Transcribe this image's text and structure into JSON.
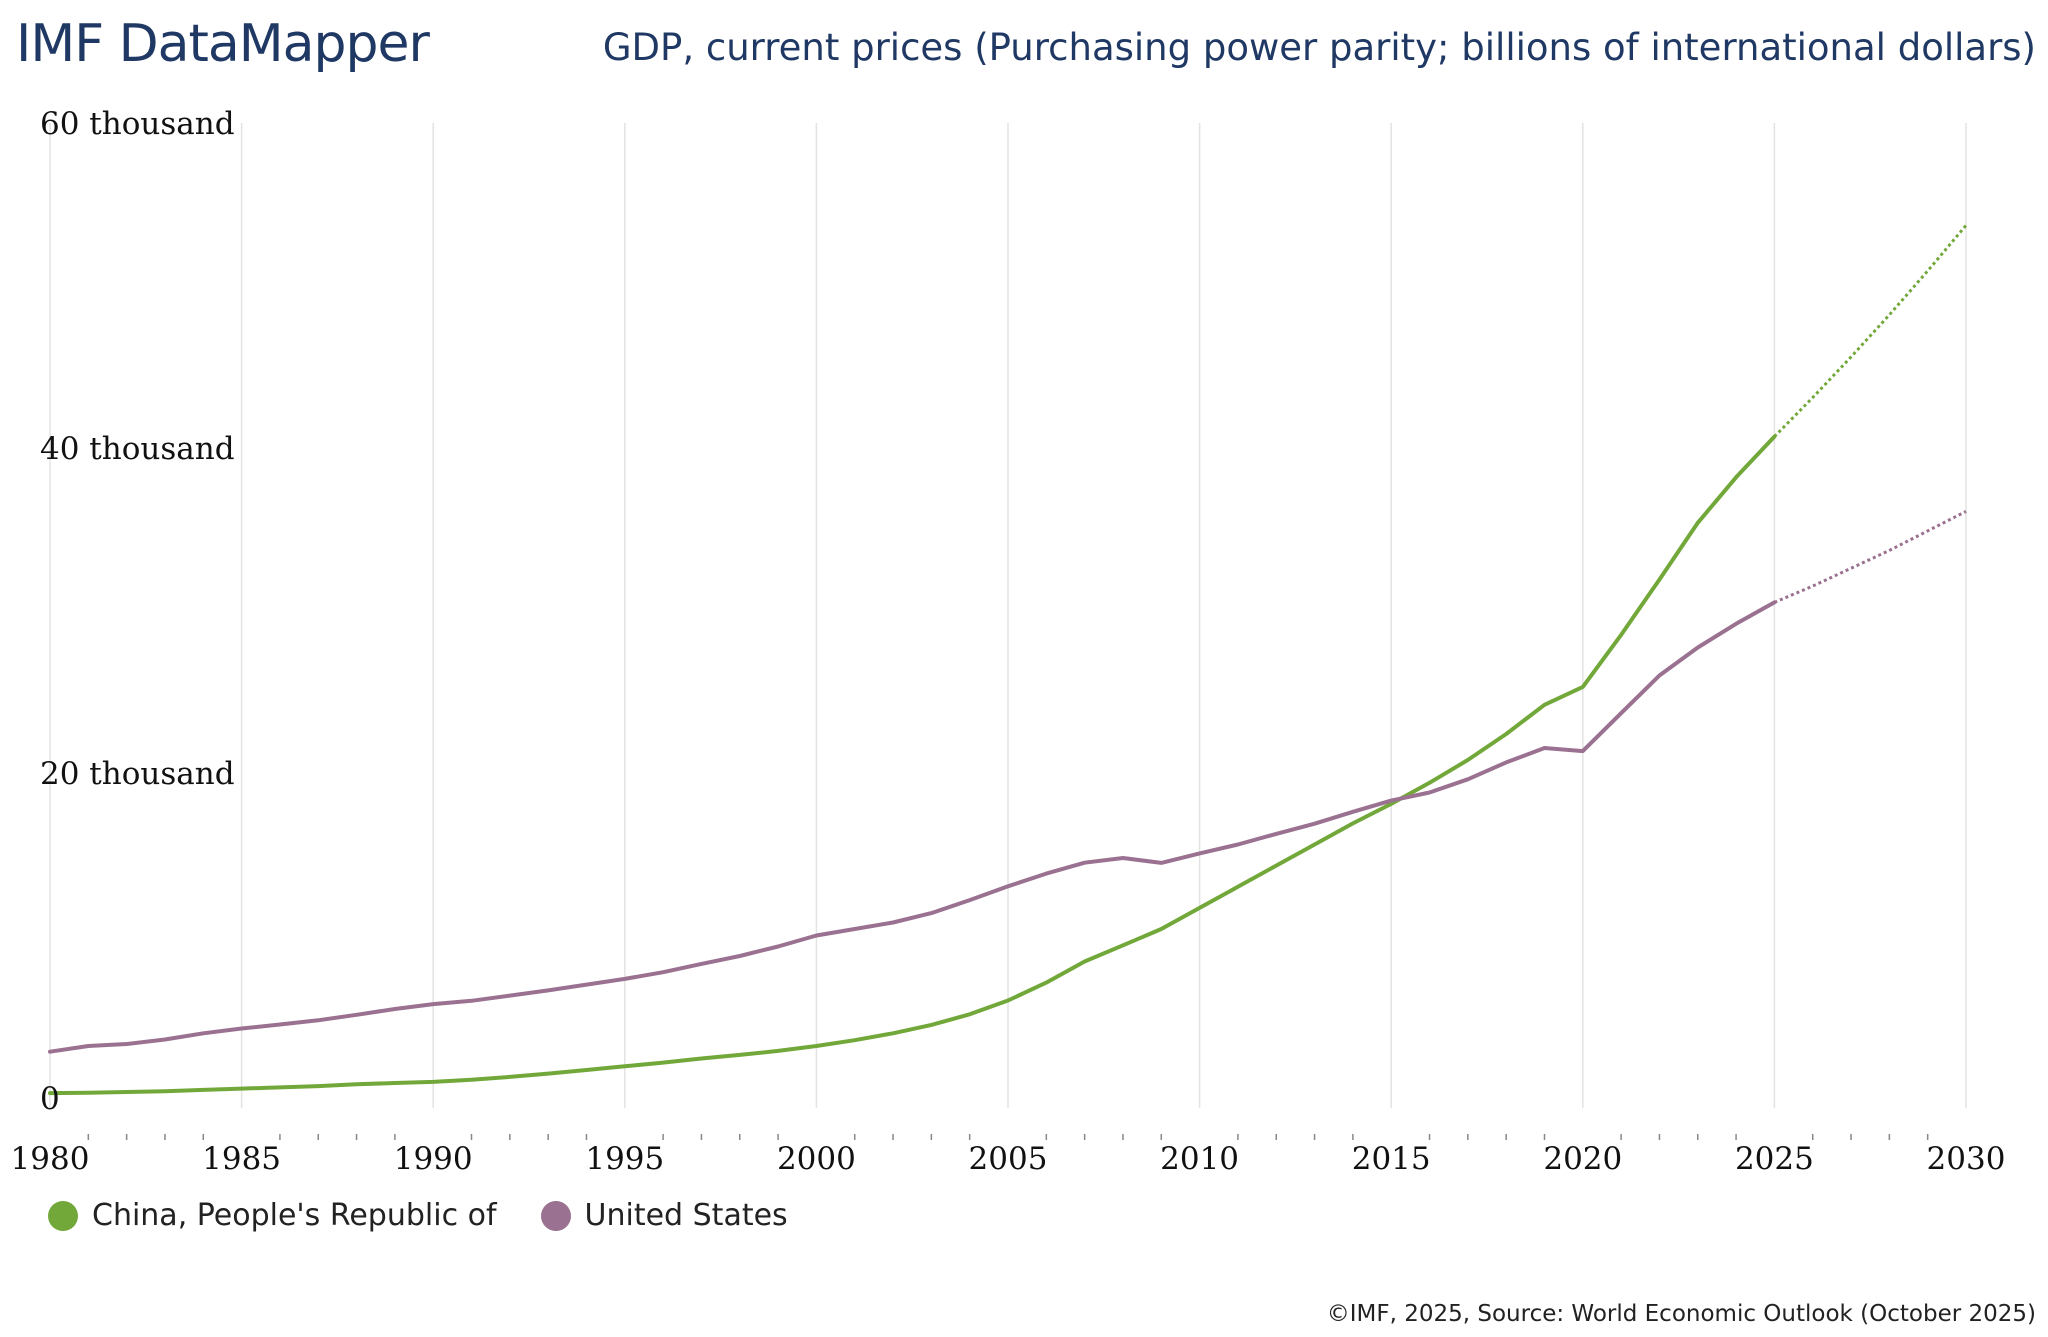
{
  "header": {
    "brand": "IMF DataMapper"
  },
  "footer": {
    "source": "©IMF, 2025, Source: World Economic Outlook (October 2025)"
  },
  "chart_data": {
    "type": "line",
    "title": "GDP, current prices (Purchasing power parity; billions of international dollars)",
    "xlabel": "",
    "ylabel": "",
    "xlim": [
      1980,
      2030
    ],
    "ylim": [
      0,
      60000
    ],
    "projection_start": 2025,
    "x_ticks": [
      1980,
      1985,
      1990,
      1995,
      2000,
      2005,
      2010,
      2015,
      2020,
      2025,
      2030
    ],
    "x_tick_labels": [
      "1980",
      "1985",
      "1990",
      "1995",
      "2000",
      "2005",
      "2010",
      "2015",
      "2020",
      "2025",
      "2030"
    ],
    "y_ticks": [
      0,
      20000,
      40000,
      60000
    ],
    "y_tick_labels": [
      "0",
      "20 thousand",
      "40 thousand",
      "60 thousand"
    ],
    "grid": true,
    "legend_position": "bottom-left",
    "x": [
      1980,
      1981,
      1982,
      1983,
      1984,
      1985,
      1986,
      1987,
      1988,
      1989,
      1990,
      1991,
      1992,
      1993,
      1994,
      1995,
      1996,
      1997,
      1998,
      1999,
      2000,
      2001,
      2002,
      2003,
      2004,
      2005,
      2006,
      2007,
      2008,
      2009,
      2010,
      2011,
      2012,
      2013,
      2014,
      2015,
      2016,
      2017,
      2018,
      2019,
      2020,
      2021,
      2022,
      2023,
      2024,
      2025,
      2026,
      2027,
      2028,
      2029,
      2030
    ],
    "series": [
      {
        "name": "China, People's Republic of",
        "color": "#72a83a",
        "values": [
          300,
          320,
          370,
          420,
          500,
          580,
          650,
          730,
          840,
          920,
          990,
          1120,
          1300,
          1500,
          1720,
          1950,
          2180,
          2430,
          2650,
          2900,
          3200,
          3560,
          3980,
          4500,
          5150,
          6000,
          7100,
          8400,
          9400,
          10400,
          11700,
          13000,
          14300,
          15600,
          16900,
          18100,
          19400,
          20800,
          22400,
          24200,
          25300,
          28500,
          31900,
          35400,
          38200,
          40700,
          43100,
          45600,
          48200,
          50900,
          53700
        ]
      },
      {
        "name": "United States",
        "color": "#9a7190",
        "values": [
          2850,
          3200,
          3320,
          3600,
          3980,
          4280,
          4520,
          4780,
          5120,
          5480,
          5780,
          5980,
          6300,
          6620,
          6980,
          7330,
          7740,
          8250,
          8740,
          9320,
          10000,
          10400,
          10800,
          11380,
          12180,
          13030,
          13810,
          14480,
          14770,
          14470,
          15050,
          15600,
          16250,
          16880,
          17610,
          18300,
          18800,
          19610,
          20650,
          21540,
          21350,
          23680,
          26000,
          27720,
          29180,
          30500,
          31500,
          32600,
          33700,
          34900,
          36100
        ]
      }
    ]
  }
}
